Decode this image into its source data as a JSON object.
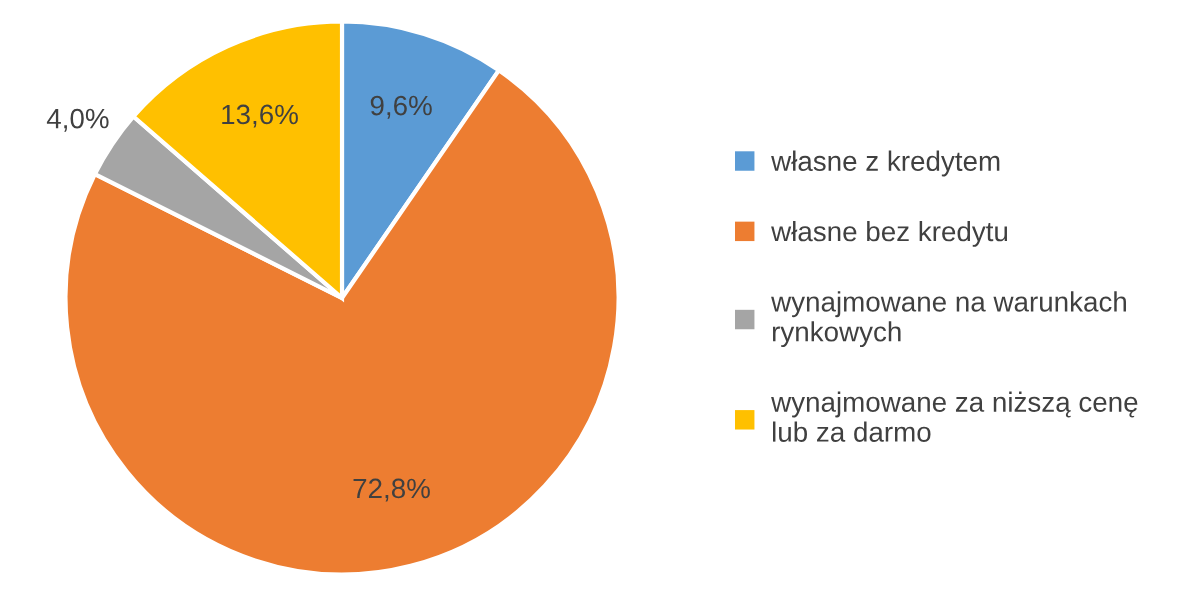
{
  "chart_data": {
    "type": "pie",
    "categories": [
      "własne z kredytem",
      "własne bez kredytu",
      "wynajmowane na warunkach\nrynkowych",
      "wynajmowane za niższą cenę\nlub za darmo"
    ],
    "values": [
      9.6,
      72.8,
      4.0,
      13.6
    ],
    "colors": [
      "#5b9bd5",
      "#ed7d31",
      "#a5a5a5",
      "#ffc000"
    ],
    "value_labels": [
      "9,6%",
      "72,8%",
      "4,0%",
      "13,6%"
    ],
    "legend": "right"
  }
}
